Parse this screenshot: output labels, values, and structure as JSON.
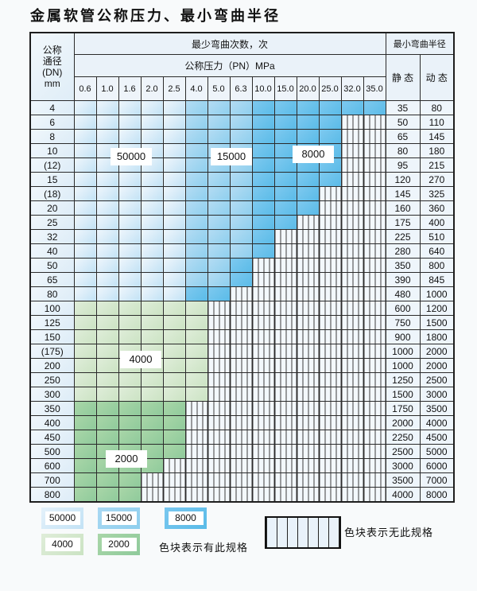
{
  "title": "金属软管公称压力、最小弯曲半径",
  "table": {
    "dn_header": [
      "公称",
      "通径",
      "(DN)",
      "mm"
    ],
    "bend_cycles_header": "最少弯曲次数，次",
    "pressure_header": "公称压力（PN）MPa",
    "radius_header": "最小弯曲半径",
    "static_header": "静 态",
    "dynamic_header": "动 态",
    "pressures": [
      "0.6",
      "1.0",
      "1.6",
      "2.0",
      "2.5",
      "4.0",
      "5.0",
      "6.3",
      "10.0",
      "15.0",
      "20.0",
      "25.0",
      "32.0",
      "35.0"
    ],
    "cell_legend": {
      "b1": "50000",
      "b2": "15000",
      "b3": "8000",
      "g1": "4000",
      "g2": "2000",
      "x": "无此规格"
    },
    "rows": [
      {
        "dn": "4",
        "static": "35",
        "dynamic": "80",
        "cells": [
          "b1",
          "b1",
          "b1",
          "b1",
          "b1",
          "b2",
          "b2",
          "b2",
          "b3",
          "b3",
          "b3",
          "b3",
          "b3",
          "b3"
        ]
      },
      {
        "dn": "6",
        "static": "50",
        "dynamic": "110",
        "cells": [
          "b1",
          "b1",
          "b1",
          "b1",
          "b1",
          "b2",
          "b2",
          "b2",
          "b3",
          "b3",
          "b3",
          "b3",
          "x",
          "x"
        ]
      },
      {
        "dn": "8",
        "static": "65",
        "dynamic": "145",
        "cells": [
          "b1",
          "b1",
          "b1",
          "b1",
          "b1",
          "b2",
          "b2",
          "b2",
          "b3",
          "b3",
          "b3",
          "b3",
          "x",
          "x"
        ]
      },
      {
        "dn": "10",
        "static": "80",
        "dynamic": "180",
        "cells": [
          "b1",
          "b1",
          "b1",
          "b1",
          "b1",
          "b2",
          "b2",
          "b2",
          "b3",
          "b3",
          "b3",
          "b3",
          "x",
          "x"
        ]
      },
      {
        "dn": "(12)",
        "static": "95",
        "dynamic": "215",
        "cells": [
          "b1",
          "b1",
          "b1",
          "b1",
          "b1",
          "b2",
          "b2",
          "b2",
          "b3",
          "b3",
          "b3",
          "b3",
          "x",
          "x"
        ]
      },
      {
        "dn": "15",
        "static": "120",
        "dynamic": "270",
        "cells": [
          "b1",
          "b1",
          "b1",
          "b1",
          "b1",
          "b2",
          "b2",
          "b2",
          "b3",
          "b3",
          "b3",
          "b3",
          "x",
          "x"
        ]
      },
      {
        "dn": "(18)",
        "static": "145",
        "dynamic": "325",
        "cells": [
          "b1",
          "b1",
          "b1",
          "b1",
          "b1",
          "b2",
          "b2",
          "b2",
          "b3",
          "b3",
          "b3",
          "x",
          "x",
          "x"
        ]
      },
      {
        "dn": "20",
        "static": "160",
        "dynamic": "360",
        "cells": [
          "b1",
          "b1",
          "b1",
          "b1",
          "b1",
          "b2",
          "b2",
          "b2",
          "b3",
          "b3",
          "b3",
          "x",
          "x",
          "x"
        ]
      },
      {
        "dn": "25",
        "static": "175",
        "dynamic": "400",
        "cells": [
          "b1",
          "b1",
          "b1",
          "b1",
          "b1",
          "b2",
          "b2",
          "b2",
          "b3",
          "b3",
          "x",
          "x",
          "x",
          "x"
        ]
      },
      {
        "dn": "32",
        "static": "225",
        "dynamic": "510",
        "cells": [
          "b1",
          "b1",
          "b1",
          "b1",
          "b1",
          "b2",
          "b2",
          "b2",
          "b3",
          "x",
          "x",
          "x",
          "x",
          "x"
        ]
      },
      {
        "dn": "40",
        "static": "280",
        "dynamic": "640",
        "cells": [
          "b1",
          "b1",
          "b1",
          "b1",
          "b1",
          "b2",
          "b2",
          "b2",
          "b3",
          "x",
          "x",
          "x",
          "x",
          "x"
        ]
      },
      {
        "dn": "50",
        "static": "350",
        "dynamic": "800",
        "cells": [
          "b1",
          "b1",
          "b1",
          "b1",
          "b1",
          "b2",
          "b2",
          "b3",
          "x",
          "x",
          "x",
          "x",
          "x",
          "x"
        ]
      },
      {
        "dn": "65",
        "static": "390",
        "dynamic": "845",
        "cells": [
          "b1",
          "b1",
          "b1",
          "b1",
          "b1",
          "b2",
          "b2",
          "b3",
          "x",
          "x",
          "x",
          "x",
          "x",
          "x"
        ]
      },
      {
        "dn": "80",
        "static": "480",
        "dynamic": "1000",
        "cells": [
          "b1",
          "b1",
          "b1",
          "b1",
          "b1",
          "b3",
          "b3",
          "x",
          "x",
          "x",
          "x",
          "x",
          "x",
          "x"
        ]
      },
      {
        "dn": "100",
        "static": "600",
        "dynamic": "1200",
        "cells": [
          "g1",
          "g1",
          "g1",
          "g1",
          "g1",
          "g1",
          "x",
          "x",
          "x",
          "x",
          "x",
          "x",
          "x",
          "x"
        ]
      },
      {
        "dn": "125",
        "static": "750",
        "dynamic": "1500",
        "cells": [
          "g1",
          "g1",
          "g1",
          "g1",
          "g1",
          "g1",
          "x",
          "x",
          "x",
          "x",
          "x",
          "x",
          "x",
          "x"
        ]
      },
      {
        "dn": "150",
        "static": "900",
        "dynamic": "1800",
        "cells": [
          "g1",
          "g1",
          "g1",
          "g1",
          "g1",
          "g1",
          "x",
          "x",
          "x",
          "x",
          "x",
          "x",
          "x",
          "x"
        ]
      },
      {
        "dn": "(175)",
        "static": "1000",
        "dynamic": "2000",
        "cells": [
          "g1",
          "g1",
          "g1",
          "g1",
          "g1",
          "g1",
          "x",
          "x",
          "x",
          "x",
          "x",
          "x",
          "x",
          "x"
        ]
      },
      {
        "dn": "200",
        "static": "1000",
        "dynamic": "2000",
        "cells": [
          "g1",
          "g1",
          "g1",
          "g1",
          "g1",
          "g1",
          "x",
          "x",
          "x",
          "x",
          "x",
          "x",
          "x",
          "x"
        ]
      },
      {
        "dn": "250",
        "static": "1250",
        "dynamic": "2500",
        "cells": [
          "g1",
          "g1",
          "g1",
          "g1",
          "g1",
          "g1",
          "x",
          "x",
          "x",
          "x",
          "x",
          "x",
          "x",
          "x"
        ]
      },
      {
        "dn": "300",
        "static": "1500",
        "dynamic": "3000",
        "cells": [
          "g1",
          "g1",
          "g1",
          "g1",
          "g1",
          "g1",
          "x",
          "x",
          "x",
          "x",
          "x",
          "x",
          "x",
          "x"
        ]
      },
      {
        "dn": "350",
        "static": "1750",
        "dynamic": "3500",
        "cells": [
          "g2",
          "g2",
          "g2",
          "g2",
          "g2",
          "x",
          "x",
          "x",
          "x",
          "x",
          "x",
          "x",
          "x",
          "x"
        ]
      },
      {
        "dn": "400",
        "static": "2000",
        "dynamic": "4000",
        "cells": [
          "g2",
          "g2",
          "g2",
          "g2",
          "g2",
          "x",
          "x",
          "x",
          "x",
          "x",
          "x",
          "x",
          "x",
          "x"
        ]
      },
      {
        "dn": "450",
        "static": "2250",
        "dynamic": "4500",
        "cells": [
          "g2",
          "g2",
          "g2",
          "g2",
          "g2",
          "x",
          "x",
          "x",
          "x",
          "x",
          "x",
          "x",
          "x",
          "x"
        ]
      },
      {
        "dn": "500",
        "static": "2500",
        "dynamic": "5000",
        "cells": [
          "g2",
          "g2",
          "g2",
          "g2",
          "g2",
          "x",
          "x",
          "x",
          "x",
          "x",
          "x",
          "x",
          "x",
          "x"
        ]
      },
      {
        "dn": "600",
        "static": "3000",
        "dynamic": "6000",
        "cells": [
          "g2",
          "g2",
          "g2",
          "g2",
          "x",
          "x",
          "x",
          "x",
          "x",
          "x",
          "x",
          "x",
          "x",
          "x"
        ]
      },
      {
        "dn": "700",
        "static": "3500",
        "dynamic": "7000",
        "cells": [
          "g2",
          "g2",
          "g2",
          "x",
          "x",
          "x",
          "x",
          "x",
          "x",
          "x",
          "x",
          "x",
          "x",
          "x"
        ]
      },
      {
        "dn": "800",
        "static": "4000",
        "dynamic": "8000",
        "cells": [
          "g2",
          "g2",
          "g2",
          "x",
          "x",
          "x",
          "x",
          "x",
          "x",
          "x",
          "x",
          "x",
          "x",
          "x"
        ]
      }
    ]
  },
  "overlays": [
    {
      "text": "50000"
    },
    {
      "text": "15000"
    },
    {
      "text": "8000"
    },
    {
      "text": "4000"
    },
    {
      "text": "2000"
    }
  ],
  "legend": {
    "items": [
      {
        "value": "50000",
        "type": "b1"
      },
      {
        "value": "15000",
        "type": "b2"
      },
      {
        "value": "8000",
        "type": "b3"
      },
      {
        "value": "4000",
        "type": "g1"
      },
      {
        "value": "2000",
        "type": "g2"
      }
    ],
    "has_spec_text": "色块表示有此规格",
    "no_spec_text": "色块表示无此规格"
  },
  "colors": {
    "cycles_50000": "#c2e2f5",
    "cycles_15000": "#8ecfee",
    "cycles_8000": "#5abbe8",
    "cycles_4000": "#cbe3c3",
    "cycles_2000": "#8fca9b",
    "grid_line": "#2b2b2b",
    "hatch_bg": "#f3f8fc"
  }
}
